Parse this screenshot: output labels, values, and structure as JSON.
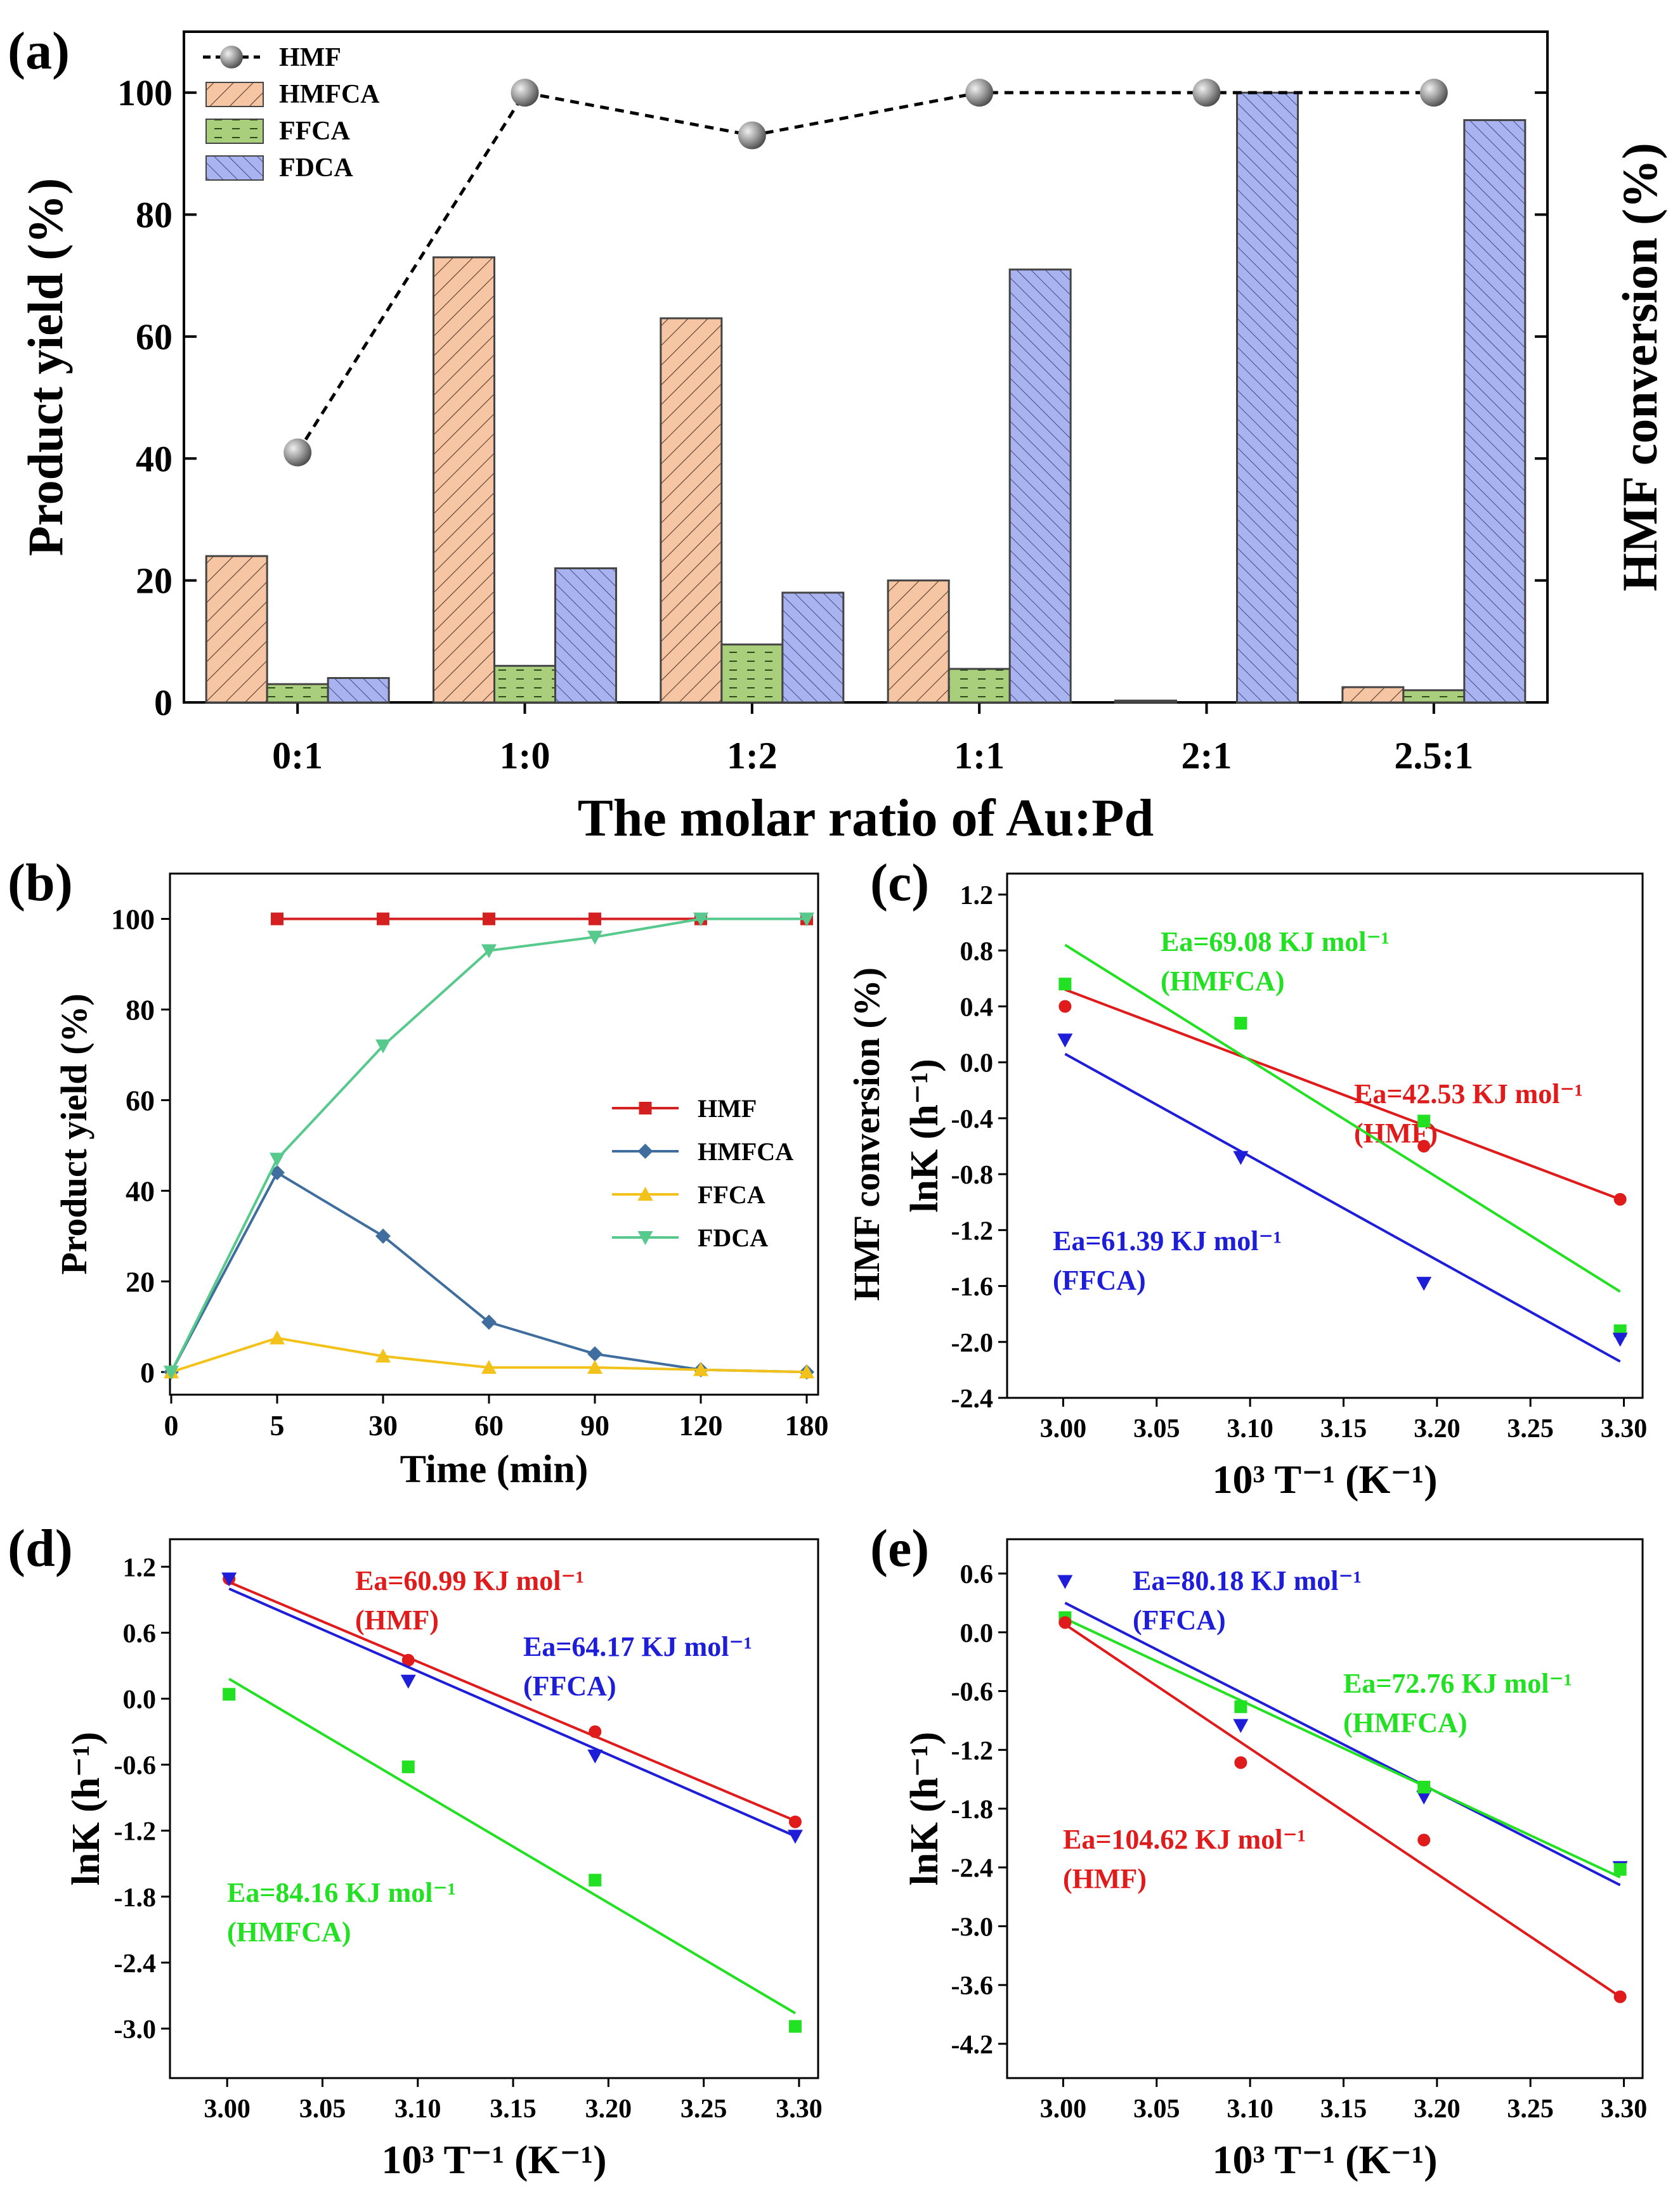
{
  "chart_data": [
    {
      "panel": "(a)",
      "type": "bar",
      "xlabel": "The molar ratio of Au:Pd",
      "ylabel": "Product yield (%)",
      "ylabel_right": "HMF conversion (%)",
      "categories": [
        "0:1",
        "1:0",
        "1:2",
        "1:1",
        "2:1",
        "2.5:1"
      ],
      "ylim": [
        0,
        110
      ],
      "yticks": [
        "0",
        "20",
        "40",
        "60",
        "80",
        "100"
      ],
      "series": [
        {
          "name": "HMFCA",
          "values": [
            24,
            73,
            63,
            20,
            0.3,
            2.5
          ],
          "color": "#f6c6a4",
          "pattern": "hatch-right"
        },
        {
          "name": "FFCA",
          "values": [
            3,
            6,
            9.5,
            5.5,
            0,
            2
          ],
          "color": "#a9cf7c",
          "pattern": "dash"
        },
        {
          "name": "FDCA",
          "values": [
            4,
            22,
            18,
            71,
            100,
            95.5
          ],
          "color": "#a9b3f0",
          "pattern": "hatch-left"
        }
      ],
      "line": {
        "name": "HMF",
        "values": [
          41,
          100,
          93,
          100,
          100,
          100
        ],
        "color": "#000000"
      },
      "legend": [
        "HMF",
        "HMFCA",
        "FFCA",
        "FDCA"
      ]
    },
    {
      "panel": "(b)",
      "type": "line",
      "xlabel": "Time (min)",
      "ylabel": "Product yield (%)",
      "ylabel_right": "HMF conversion (%)",
      "x_ticks": [
        "0",
        "5",
        "30",
        "60",
        "90",
        "120",
        "180"
      ],
      "ylim": [
        -5,
        110
      ],
      "yticks": [
        "0",
        "20",
        "40",
        "60",
        "80",
        "100"
      ],
      "series": [
        {
          "name": "HMF",
          "color": "#d42020",
          "marker": "square",
          "points": [
            [
              1,
              100
            ],
            [
              2,
              100
            ],
            [
              3,
              100
            ],
            [
              4,
              100
            ],
            [
              5,
              100
            ],
            [
              6,
              100
            ]
          ]
        },
        {
          "name": "HMFCA",
          "color": "#3f6e9e",
          "marker": "diamond",
          "points": [
            [
              0,
              0
            ],
            [
              1,
              44
            ],
            [
              2,
              30
            ],
            [
              3,
              11
            ],
            [
              4,
              4
            ],
            [
              5,
              0.5
            ],
            [
              6,
              0
            ]
          ]
        },
        {
          "name": "FFCA",
          "color": "#f2c21a",
          "marker": "triangle-up",
          "points": [
            [
              0,
              0
            ],
            [
              1,
              7.5
            ],
            [
              2,
              3.5
            ],
            [
              3,
              1
            ],
            [
              4,
              1
            ],
            [
              5,
              0.5
            ],
            [
              6,
              0
            ]
          ]
        },
        {
          "name": "FDCA",
          "color": "#58c98c",
          "marker": "triangle-down",
          "points": [
            [
              0,
              0
            ],
            [
              1,
              47
            ],
            [
              2,
              72
            ],
            [
              3,
              93
            ],
            [
              4,
              96
            ],
            [
              5,
              100
            ],
            [
              6,
              100
            ]
          ]
        }
      ]
    },
    {
      "panel": "(c)",
      "type": "scatter",
      "xlabel": "10³ T⁻¹ (K⁻¹)",
      "ylabel": "lnK (h⁻¹)",
      "xlim": [
        2.97,
        3.31
      ],
      "ylim": [
        -2.4,
        1.35
      ],
      "xticks": [
        "3.00",
        "3.05",
        "3.10",
        "3.15",
        "3.20",
        "3.25",
        "3.30"
      ],
      "yticks": [
        "-2.4",
        "-2.0",
        "-1.6",
        "-1.2",
        "-0.8",
        "-0.4",
        "0.0",
        "0.4",
        "0.8",
        "1.2"
      ],
      "series": [
        {
          "name": "HMF",
          "color": "#e01b1b",
          "marker": "circle",
          "points": [
            [
              3.001,
              0.4
            ],
            [
              3.095,
              0.28
            ],
            [
              3.193,
              -0.6
            ],
            [
              3.298,
              -0.98
            ]
          ],
          "fit": [
            [
              3.001,
              0.52
            ],
            [
              3.298,
              -0.98
            ]
          ],
          "label": [
            "Ea=42.53 KJ mol⁻¹",
            "(HMF)"
          ]
        },
        {
          "name": "HMFCA",
          "color": "#22e022",
          "marker": "square",
          "points": [
            [
              3.001,
              0.56
            ],
            [
              3.095,
              0.28
            ],
            [
              3.193,
              -0.42
            ],
            [
              3.298,
              -1.92
            ]
          ],
          "fit": [
            [
              3.001,
              0.84
            ],
            [
              3.298,
              -1.64
            ]
          ],
          "label": [
            "Ea=69.08 KJ mol⁻¹",
            "(HMFCA)"
          ]
        },
        {
          "name": "FFCA",
          "color": "#1e1ed8",
          "marker": "triangle-down",
          "points": [
            [
              3.001,
              0.16
            ],
            [
              3.095,
              -0.68
            ],
            [
              3.193,
              -1.58
            ],
            [
              3.298,
              -1.98
            ]
          ],
          "fit": [
            [
              3.001,
              0.06
            ],
            [
              3.298,
              -2.14
            ]
          ],
          "label": [
            "Ea=61.39 KJ mol⁻¹",
            "(FFCA)"
          ]
        }
      ]
    },
    {
      "panel": "(d)",
      "type": "scatter",
      "xlabel": "10³ T⁻¹ (K⁻¹)",
      "ylabel": "lnK (h⁻¹)",
      "xlim": [
        2.97,
        3.31
      ],
      "ylim": [
        -3.45,
        1.45
      ],
      "xticks": [
        "3.00",
        "3.05",
        "3.10",
        "3.15",
        "3.20",
        "3.25",
        "3.30"
      ],
      "yticks": [
        "-3.0",
        "-2.4",
        "-1.8",
        "-1.2",
        "-0.6",
        "0.0",
        "0.6",
        "1.2"
      ],
      "series": [
        {
          "name": "HMF",
          "color": "#e01b1b",
          "marker": "circle",
          "points": [
            [
              3.001,
              1.09
            ],
            [
              3.095,
              0.35
            ],
            [
              3.193,
              -0.3
            ],
            [
              3.298,
              -1.12
            ]
          ],
          "fit": [
            [
              3.001,
              1.06
            ],
            [
              3.298,
              -1.11
            ]
          ],
          "label": [
            "Ea=60.99 KJ mol⁻¹",
            "(HMF)"
          ]
        },
        {
          "name": "FFCA",
          "color": "#1e1ed8",
          "marker": "triangle-down",
          "points": [
            [
              3.001,
              1.09
            ],
            [
              3.095,
              0.16
            ],
            [
              3.193,
              -0.52
            ],
            [
              3.298,
              -1.25
            ]
          ],
          "fit": [
            [
              3.001,
              1.0
            ],
            [
              3.298,
              -1.25
            ]
          ],
          "label": [
            "Ea=64.17 KJ mol⁻¹",
            "(FFCA)"
          ]
        },
        {
          "name": "HMFCA",
          "color": "#22e022",
          "marker": "square",
          "points": [
            [
              3.001,
              0.04
            ],
            [
              3.095,
              -0.62
            ],
            [
              3.193,
              -1.65
            ],
            [
              3.298,
              -2.98
            ]
          ],
          "fit": [
            [
              3.001,
              0.18
            ],
            [
              3.298,
              -2.86
            ]
          ],
          "label": [
            "Ea=84.16 KJ mol⁻¹",
            "(HMFCA)"
          ]
        }
      ]
    },
    {
      "panel": "(e)",
      "type": "scatter",
      "xlabel": "10³ T⁻¹ (K⁻¹)",
      "ylabel": "lnK (h⁻¹)",
      "xlim": [
        2.97,
        3.31
      ],
      "ylim": [
        -4.55,
        0.95
      ],
      "xticks": [
        "3.00",
        "3.05",
        "3.10",
        "3.15",
        "3.20",
        "3.25",
        "3.30"
      ],
      "yticks": [
        "-4.2",
        "-3.6",
        "-3.0",
        "-2.4",
        "-1.8",
        "-1.2",
        "-0.6",
        "0.0",
        "0.6"
      ],
      "series": [
        {
          "name": "FFCA",
          "color": "#1e1ed8",
          "marker": "triangle-down",
          "points": [
            [
              3.001,
              0.52
            ],
            [
              3.095,
              -0.95
            ],
            [
              3.193,
              -1.68
            ],
            [
              3.298,
              -2.4
            ]
          ],
          "fit": [
            [
              3.001,
              0.3
            ],
            [
              3.298,
              -2.58
            ]
          ],
          "label": [
            "Ea=80.18 KJ mol⁻¹",
            "(FFCA)"
          ]
        },
        {
          "name": "HMFCA",
          "color": "#22e022",
          "marker": "square",
          "points": [
            [
              3.001,
              0.15
            ],
            [
              3.095,
              -0.76
            ],
            [
              3.193,
              -1.58
            ],
            [
              3.298,
              -2.42
            ]
          ],
          "fit": [
            [
              3.001,
              0.14
            ],
            [
              3.298,
              -2.5
            ]
          ],
          "label": [
            "Ea=72.76 KJ mol⁻¹",
            "(HMFCA)"
          ]
        },
        {
          "name": "HMF",
          "color": "#e01b1b",
          "marker": "circle",
          "points": [
            [
              3.001,
              0.1
            ],
            [
              3.095,
              -1.33
            ],
            [
              3.193,
              -2.12
            ],
            [
              3.298,
              -3.72
            ]
          ],
          "fit": [
            [
              3.001,
              0.08
            ],
            [
              3.298,
              -3.72
            ]
          ],
          "label": [
            "Ea=104.62 KJ mol⁻¹",
            "(HMF)"
          ]
        }
      ]
    }
  ]
}
